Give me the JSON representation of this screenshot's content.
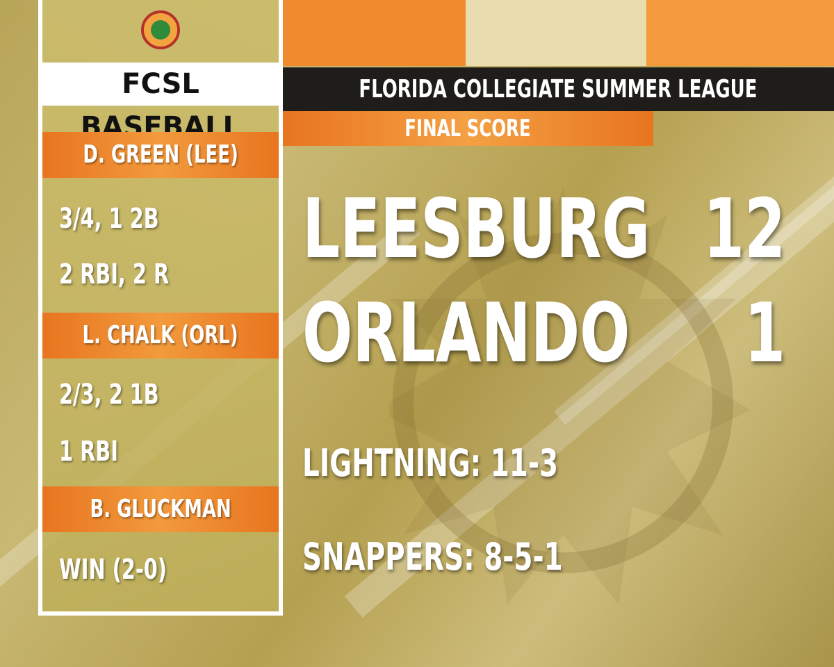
{
  "header": {
    "league": "FLORIDA COLLEGIATE SUMMER LEAGUE",
    "subtitle": "FINAL SCORE"
  },
  "panel": {
    "title": "FCSL BASEBALL",
    "players": [
      {
        "name": "D. GREEN (LEE)",
        "stats": [
          "3/4, 1 2B",
          "2 RBI, 2 R"
        ]
      },
      {
        "name": "L. CHALK (ORL)",
        "stats": [
          "2/3, 2 1B",
          "1 RBI"
        ]
      },
      {
        "name": "B. GLUCKMAN",
        "stats": [
          "WIN (2-0)"
        ]
      }
    ]
  },
  "scores": [
    {
      "team": "LEESBURG",
      "score": "12"
    },
    {
      "team": "ORLANDO",
      "score": "1"
    }
  ],
  "records": [
    "LIGHTNING: 11-3",
    "SNAPPERS: 8-5-1"
  ]
}
